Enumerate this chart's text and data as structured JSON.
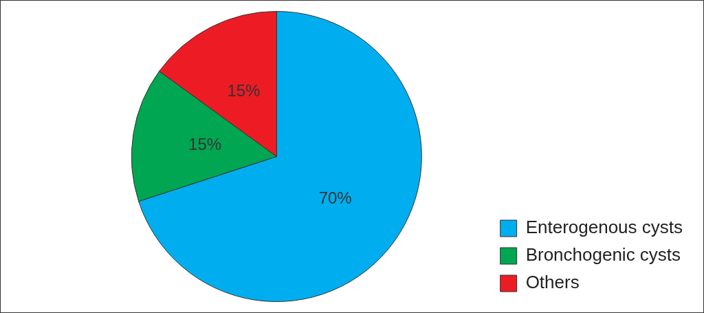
{
  "chart_data": {
    "type": "pie",
    "categories": [
      "Enterogenous cysts",
      "Bronchogenic cysts",
      "Others"
    ],
    "values": [
      70,
      15,
      15
    ],
    "colors": [
      "#00aeef",
      "#00a651",
      "#ed1c24"
    ],
    "value_labels": [
      "70%",
      "15%",
      "15%"
    ],
    "legend": "bottom right"
  }
}
